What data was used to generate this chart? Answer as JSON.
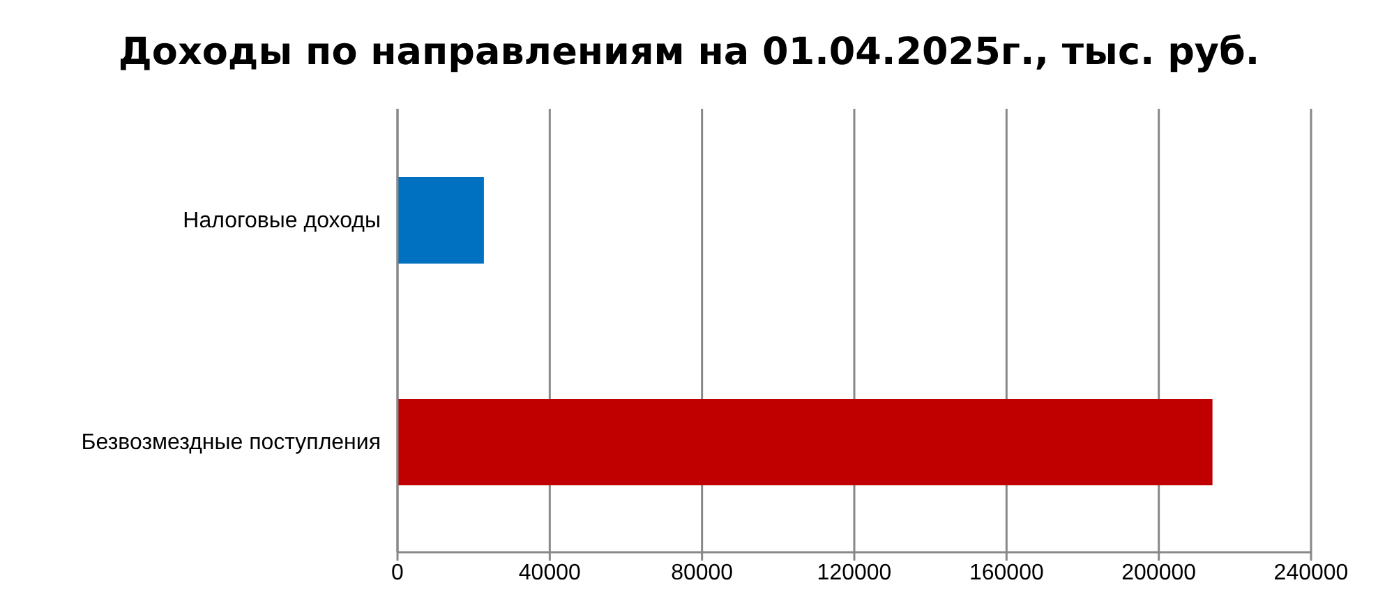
{
  "chart_data": {
    "type": "bar",
    "orientation": "horizontal",
    "title": "Доходы по направлениям на 01.04.2025г., тыс. руб.",
    "categories": [
      "Налоговые доходы",
      "Безвозмездные поступления"
    ],
    "values": [
      22700,
      214100
    ],
    "colors": [
      "#0070c0",
      "#c00000"
    ],
    "xlim": [
      0,
      240000
    ],
    "xticks": [
      0,
      40000,
      80000,
      120000,
      160000,
      200000,
      240000
    ],
    "grid": "x"
  }
}
